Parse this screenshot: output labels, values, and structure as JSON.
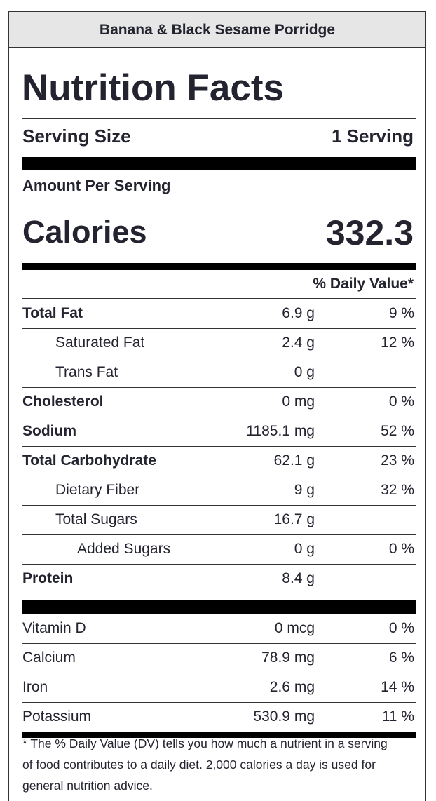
{
  "header": {
    "title": "Banana & Black Sesame Porridge"
  },
  "label": {
    "heading": "Nutrition Facts",
    "serving_size": {
      "label": "Serving Size",
      "value": "1 Serving"
    },
    "amount_per_serving": "Amount Per Serving",
    "calories": {
      "label": "Calories",
      "value": "332.3"
    },
    "daily_value_header": "% Daily Value*",
    "nutrients": [
      {
        "name": "Total Fat",
        "amount": "6.9 g",
        "dv": "9 %",
        "level": 0
      },
      {
        "name": "Saturated Fat",
        "amount": "2.4 g",
        "dv": "12 %",
        "level": 1
      },
      {
        "name": "Trans Fat",
        "amount": "0 g",
        "level": 1
      },
      {
        "name": "Cholesterol",
        "amount": "0 mg",
        "dv": "0 %",
        "level": 0
      },
      {
        "name": "Sodium",
        "amount": "1185.1 mg",
        "dv": "52 %",
        "level": 0
      },
      {
        "name": "Total Carbohydrate",
        "amount": "62.1 g",
        "dv": "23 %",
        "level": 0
      },
      {
        "name": "Dietary Fiber",
        "amount": "9 g",
        "dv": "32 %",
        "level": 1
      },
      {
        "name": "Total Sugars",
        "amount": "16.7 g",
        "level": 1
      },
      {
        "name": "Added Sugars",
        "amount": "0 g",
        "dv": "0 %",
        "level": 2
      },
      {
        "name": "Protein",
        "amount": "8.4 g",
        "level": 0
      }
    ],
    "vitamins": [
      {
        "name": "Vitamin D",
        "amount": "0 mcg",
        "dv": "0 %"
      },
      {
        "name": "Calcium",
        "amount": "78.9 mg",
        "dv": "6 %"
      },
      {
        "name": "Iron",
        "amount": "2.6 mg",
        "dv": "14 %"
      },
      {
        "name": "Potassium",
        "amount": "530.9 mg",
        "dv": "11 %"
      }
    ],
    "footnote": "* The % Daily Value (DV) tells you how much a nutrient in a serving of food contributes to a daily diet. 2,000 calories a day is used for general nutrition advice."
  }
}
